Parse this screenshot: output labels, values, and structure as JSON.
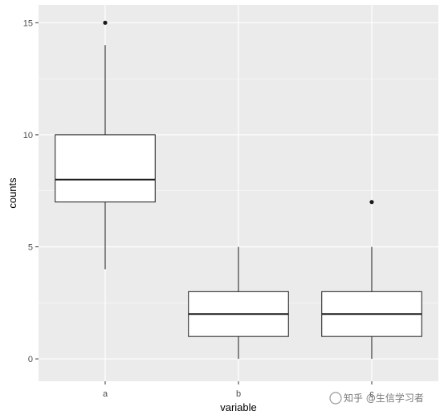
{
  "chart_data": {
    "type": "boxplot",
    "xlabel": "variable",
    "ylabel": "counts",
    "ylim": [
      -1,
      15.8
    ],
    "yticks": [
      0,
      5,
      10,
      15
    ],
    "y_minor_ticks": [
      2.5,
      7.5,
      12.5
    ],
    "grid": true,
    "colors": {
      "panel": "#ebebeb",
      "grid_major": "#ffffff",
      "box_fill": "#ffffff",
      "box_line": "#1a1a1a",
      "outlier": "#1a1a1a"
    },
    "categories": [
      "a",
      "b",
      "c"
    ],
    "boxes": [
      {
        "category": "a",
        "whisker_low": 4,
        "q1": 7,
        "median": 8,
        "q3": 10,
        "whisker_high": 14,
        "outliers": [
          15
        ]
      },
      {
        "category": "b",
        "whisker_low": 0,
        "q1": 1,
        "median": 2,
        "q3": 3,
        "whisker_high": 5,
        "outliers": []
      },
      {
        "category": "c",
        "whisker_low": 0,
        "q1": 1,
        "median": 2,
        "q3": 3,
        "whisker_high": 5,
        "outliers": [
          7
        ]
      }
    ]
  },
  "watermark": {
    "text": "知乎 @生信学习者"
  }
}
